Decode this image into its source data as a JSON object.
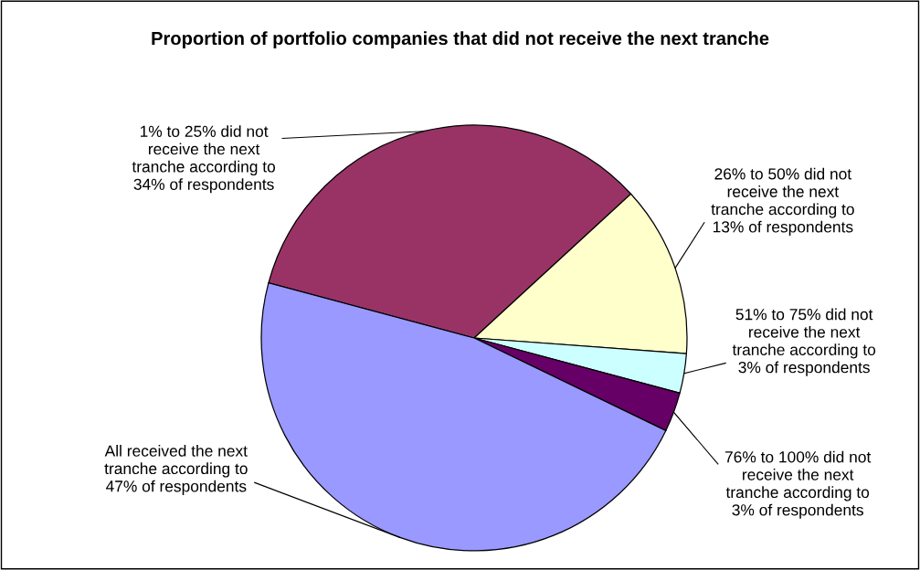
{
  "chart_data": {
    "type": "pie",
    "title": "Proportion of portfolio companies that did not receive the next tranche",
    "categories": [
      "1% to 25% did not receive the next tranche according to 34% of respondents",
      "26% to 50% did not receive the next tranche according to 13% of respondents",
      "51% to 75% did not receive the next tranche according to 3% of respondents",
      "76% to 100% did not receive the next tranche according to 3% of respondents",
      "All received the next tranche according to 47% of respondents"
    ],
    "values": [
      34,
      13,
      3,
      3,
      47
    ],
    "colors": [
      "#993366",
      "#ffffcc",
      "#ccffff",
      "#660066",
      "#9999ff"
    ],
    "legend": false
  }
}
